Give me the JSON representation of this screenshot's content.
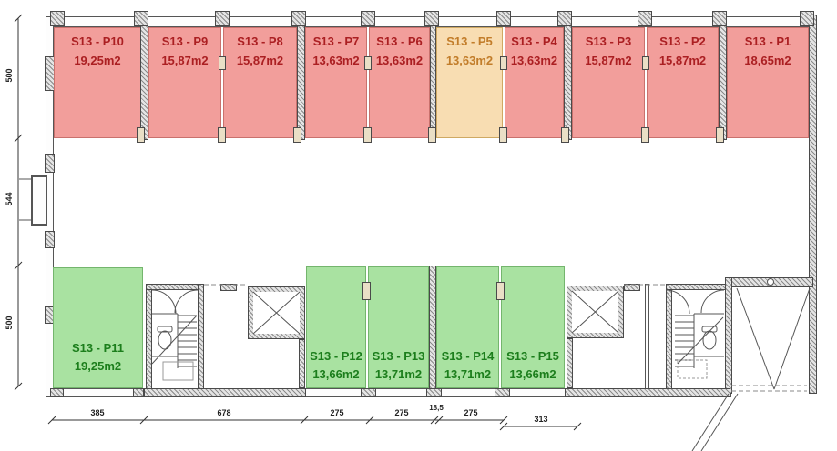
{
  "units": [
    {
      "label": "S13 - P10",
      "area": "19,25m2",
      "status": "red"
    },
    {
      "label": "S13 - P9",
      "area": "15,87m2",
      "status": "red"
    },
    {
      "label": "S13 - P8",
      "area": "15,87m2",
      "status": "red"
    },
    {
      "label": "S13 - P7",
      "area": "13,63m2",
      "status": "red"
    },
    {
      "label": "S13 - P6",
      "area": "13,63m2",
      "status": "red"
    },
    {
      "label": "S13 - P5",
      "area": "13,63m2",
      "status": "orange"
    },
    {
      "label": "S13 - P4",
      "area": "13,63m2",
      "status": "red"
    },
    {
      "label": "S13 - P3",
      "area": "15,87m2",
      "status": "red"
    },
    {
      "label": "S13 - P2",
      "area": "15,87m2",
      "status": "red"
    },
    {
      "label": "S13 - P1",
      "area": "18,65m2",
      "status": "red"
    },
    {
      "label": "S13 - P11",
      "area": "19,25m2",
      "status": "green"
    },
    {
      "label": "S13 - P12",
      "area": "13,66m2",
      "status": "green"
    },
    {
      "label": "S13 - P13",
      "area": "13,71m2",
      "status": "green"
    },
    {
      "label": "S13 - P14",
      "area": "13,71m2",
      "status": "green"
    },
    {
      "label": "S13 - P15",
      "area": "13,66m2",
      "status": "green"
    }
  ],
  "dimensions": {
    "left": [
      "500",
      "544",
      "500"
    ],
    "bottom": [
      "385",
      "678",
      "275",
      "275",
      "18,5",
      "275",
      "313"
    ]
  },
  "colors": {
    "unit-red-fill": "#f29e9b",
    "unit-red-text": "#ab1f22",
    "unit-orange-fill": "#f8ddb2",
    "unit-orange-text": "#c27d2a",
    "unit-green-fill": "#a9e2a1",
    "unit-green-text": "#1c7e1c",
    "wall-line": "#4a4a4a"
  }
}
